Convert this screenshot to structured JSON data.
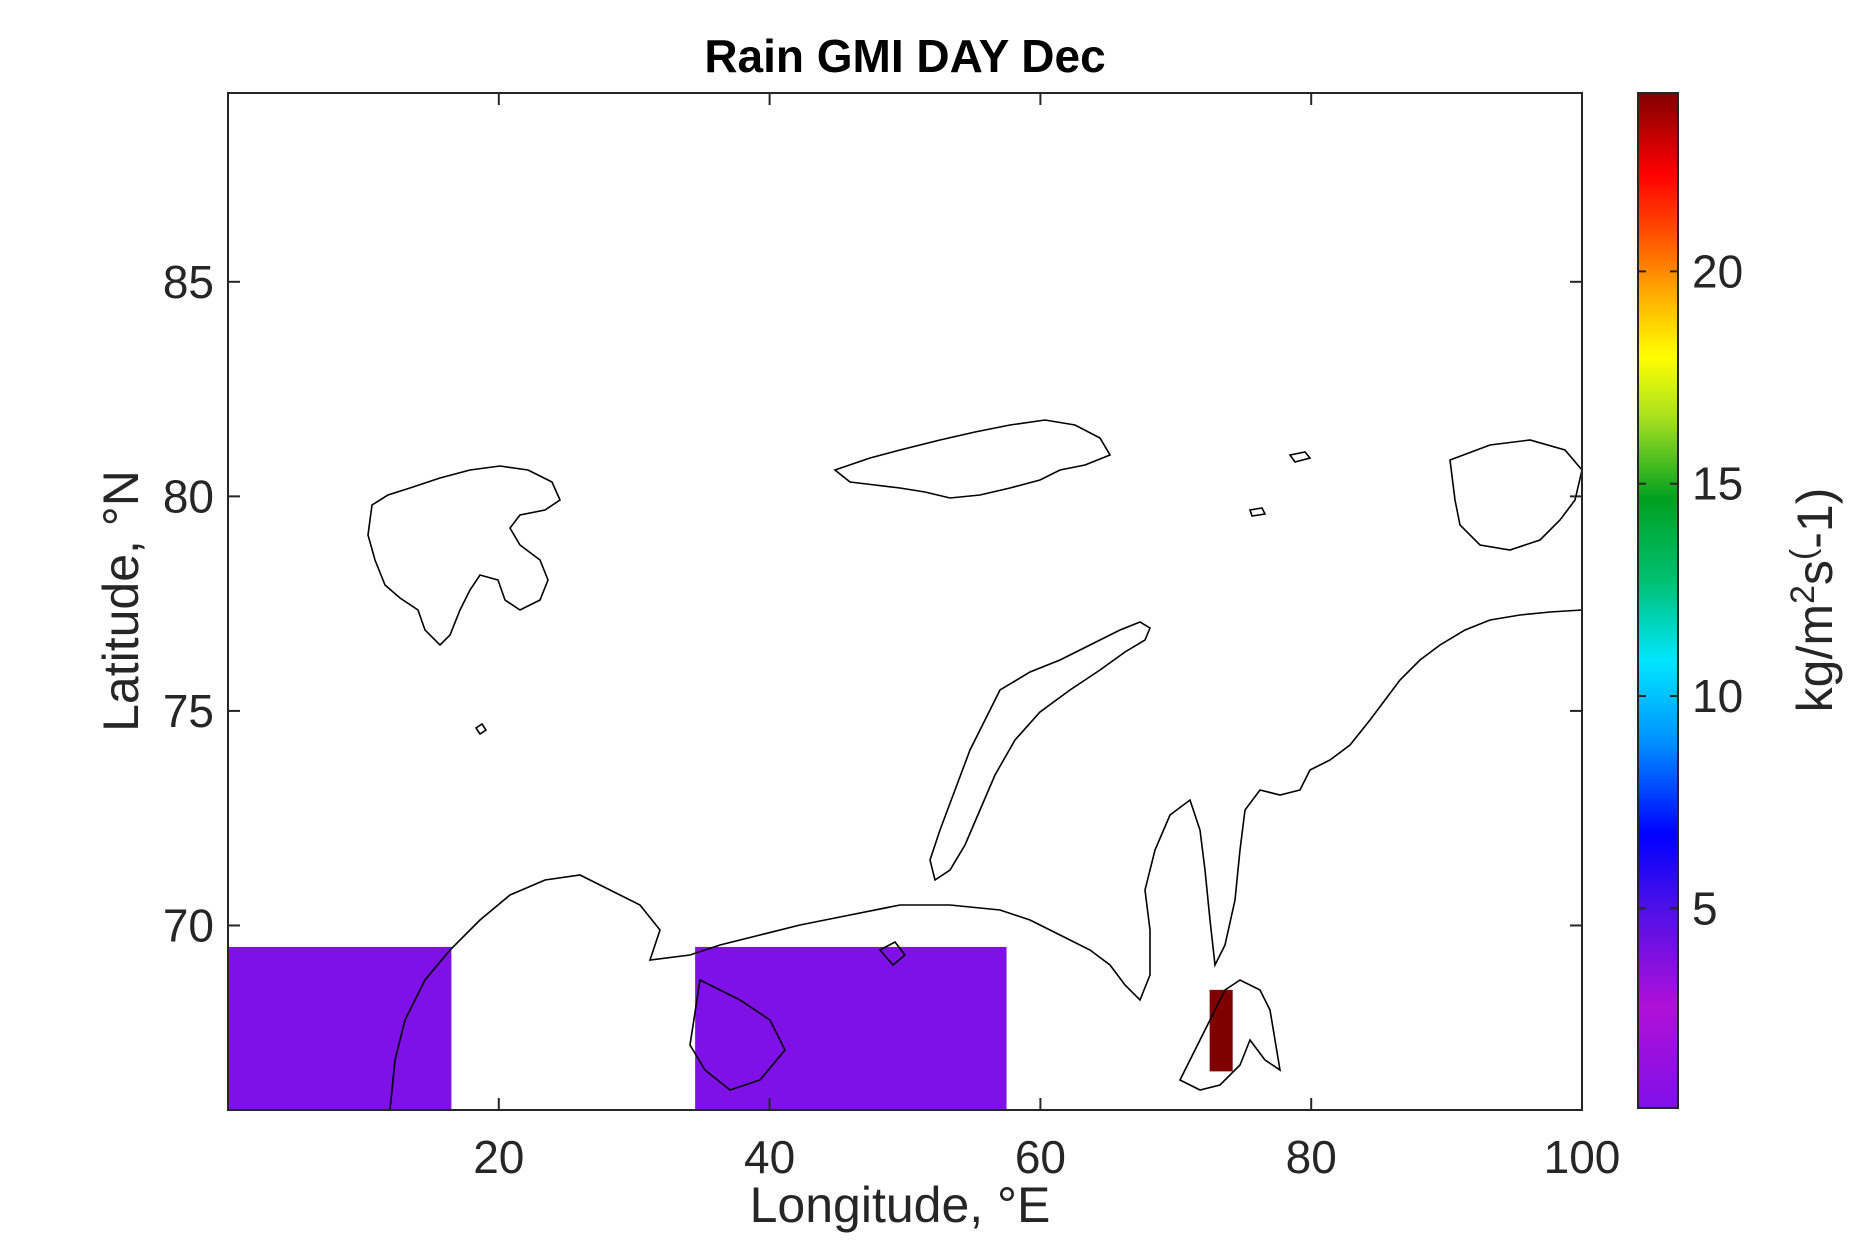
{
  "chart_data": {
    "type": "heatmap",
    "title": "Rain GMI DAY Dec",
    "xlabel": "Longitude, °E",
    "ylabel": "Latitude, °N",
    "xlim": [
      0,
      100
    ],
    "ylim": [
      65.7,
      89.4
    ],
    "xticks": [
      20,
      40,
      60,
      80,
      100
    ],
    "yticks": [
      70,
      75,
      80,
      85
    ],
    "grid": false,
    "colorbar": {
      "label_base": "kg/m",
      "label_sup1": "2",
      "label_mid": "s",
      "label_sup2": "(",
      "label_end": "-1)",
      "range": [
        0.3,
        24.2
      ],
      "ticks": [
        5,
        10,
        15,
        20
      ],
      "colormap": "rainbow",
      "low_color": "#7f10e8",
      "high_color": "#800000"
    },
    "regions": [
      {
        "value": 1.2,
        "lon_range": [
          0,
          16.5
        ],
        "lat_range": [
          65.7,
          69.5
        ]
      },
      {
        "value": 1.2,
        "lon_range": [
          34.5,
          57.5
        ],
        "lat_range": [
          65.7,
          69.5
        ]
      },
      {
        "value": 24.0,
        "lon_range": [
          72.5,
          74.2
        ],
        "lat_range": [
          66.6,
          68.5
        ]
      }
    ]
  }
}
